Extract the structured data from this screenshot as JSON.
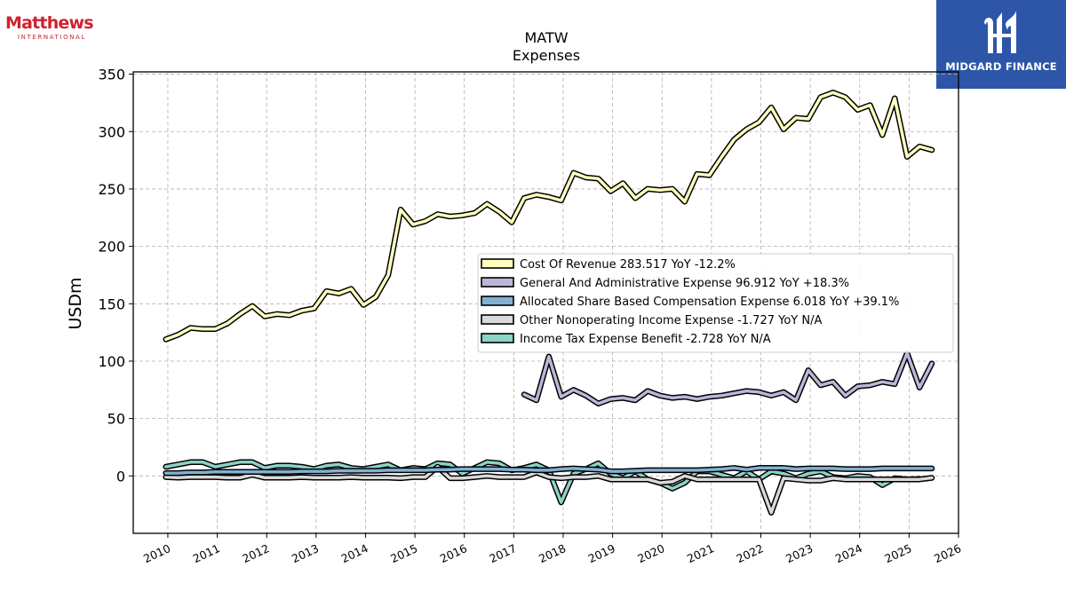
{
  "brand_left": {
    "name": "Matthews",
    "sub": "INTERNATIONAL",
    "color": "#d0202f"
  },
  "brand_right": {
    "name": "MIDGARD FINANCE",
    "background": "#2d56a8"
  },
  "chart_data": {
    "type": "line",
    "title": "MATW",
    "subtitle": "Expenses",
    "xlabel": "",
    "ylabel": "USDm",
    "xlim": [
      2009.3,
      2026.0
    ],
    "ylim": [
      -50,
      352
    ],
    "x_ticks": [
      2010,
      2011,
      2012,
      2013,
      2014,
      2015,
      2016,
      2017,
      2018,
      2019,
      2020,
      2021,
      2022,
      2023,
      2024,
      2025,
      2026
    ],
    "y_ticks": [
      0,
      50,
      100,
      150,
      200,
      250,
      300,
      350
    ],
    "grid": true,
    "legend_position": "center-right",
    "series": [
      {
        "name": "Cost Of Revenue",
        "legend_label": "Cost Of Revenue  283.517 YoY -12.2%",
        "color": "#ffffbf",
        "x0": 2009.96,
        "dx": 0.25,
        "values": [
          119,
          123,
          129,
          128,
          128,
          133,
          141,
          148,
          139,
          141,
          140,
          144,
          146,
          161,
          159,
          163,
          149,
          156,
          175,
          232,
          219,
          222,
          228,
          226,
          227,
          229,
          237,
          230,
          221,
          242,
          245,
          243,
          240,
          264,
          260,
          259,
          248,
          255,
          242,
          250,
          249,
          250,
          239,
          263,
          262,
          278,
          293,
          302,
          308,
          321,
          302,
          312,
          311,
          330,
          334,
          330,
          319,
          323,
          297,
          329,
          278,
          287,
          284
        ]
      },
      {
        "name": "General And Administrative Expense",
        "legend_label": "General And Administrative Expense  96.912 YoY +18.3%",
        "color": "#bcb6d9",
        "x0": 2017.21,
        "dx": 0.25,
        "values": [
          71,
          66,
          104,
          69,
          75,
          70,
          63,
          67,
          68,
          66,
          74,
          70,
          68,
          69,
          67,
          69,
          70,
          72,
          74,
          73,
          70,
          73,
          66,
          92,
          79,
          82,
          70,
          78,
          79,
          82,
          80,
          107,
          77,
          98
        ]
      },
      {
        "name": "Allocated Share Based Compensation Expense",
        "legend_label": "Allocated Share Based Compensation Expense  6.018 YoY +39.1%",
        "color": "#80b1d3",
        "x0": 2009.96,
        "dx": 0.25,
        "values": [
          2.5,
          2.5,
          3,
          3,
          3.5,
          3.5,
          3.5,
          3.5,
          3.5,
          3.5,
          3.5,
          4,
          4,
          4,
          4.5,
          4.5,
          4.5,
          4.5,
          5,
          5,
          5,
          5,
          5.5,
          5.5,
          6,
          6,
          6,
          6,
          5.5,
          5.5,
          5,
          5,
          6,
          6.5,
          6,
          5.5,
          4,
          4,
          4.5,
          5,
          5,
          5,
          5,
          5,
          5.5,
          6,
          7,
          5.5,
          7,
          7,
          7,
          6,
          6.5,
          6.5,
          6.5,
          6,
          6,
          6,
          6.5,
          6.5,
          6.5,
          6.5,
          6.5
        ]
      },
      {
        "name": "Other Nonoperating Income Expense",
        "legend_label": "Other Nonoperating Income Expense  -1.727 YoY N/A",
        "color": "#d9d9d9",
        "x0": 2009.96,
        "dx": 0.25,
        "values": [
          -1,
          -1.5,
          -1,
          -1,
          -1,
          -1.5,
          -1.5,
          1,
          -1.5,
          -1.5,
          -1.5,
          -1,
          -1.5,
          -1.5,
          -1.5,
          -1,
          -1.5,
          -1.5,
          -1.5,
          -2,
          -1,
          -1,
          8,
          -2,
          -2,
          -1,
          0,
          -1,
          -1,
          -1,
          3,
          -1,
          -2,
          -1,
          -1,
          0,
          -3,
          -3,
          -3,
          -3,
          -6,
          -5,
          0,
          -3,
          -3,
          -3,
          -3,
          -3,
          -3,
          -32,
          -2,
          -3,
          -4,
          -4,
          -2,
          -3,
          -3,
          -3,
          -3,
          -3,
          -3,
          -3,
          -1.7
        ]
      },
      {
        "name": "Income Tax Expense Benefit",
        "legend_label": "Income Tax Expense Benefit  -2.728 YoY N/A",
        "color": "#8dd3c7",
        "x0": 2009.96,
        "dx": 0.25,
        "values": [
          8,
          10,
          12,
          12,
          8,
          10,
          12,
          12,
          7,
          9,
          9,
          8,
          6,
          9,
          10,
          7,
          6,
          8,
          10,
          5,
          7,
          6,
          11,
          10,
          2,
          7,
          12,
          11,
          5,
          7,
          10,
          5,
          -23,
          2,
          6,
          11,
          2,
          -2,
          4,
          -3,
          -6,
          -11,
          -6,
          4,
          4,
          1,
          -2,
          4,
          -3,
          4,
          2,
          -2,
          2,
          4,
          -1,
          -2,
          0,
          -1,
          -8,
          -2,
          -3,
          -2.7
        ]
      }
    ]
  }
}
